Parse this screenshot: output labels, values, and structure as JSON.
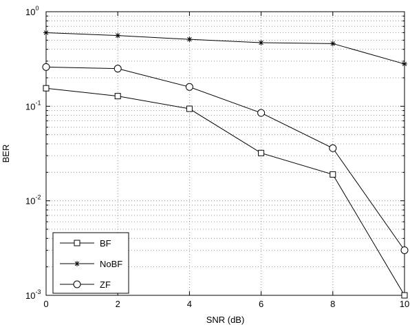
{
  "chart_data": {
    "type": "line",
    "xlabel": "SNR (dB)",
    "ylabel": "BER",
    "xlim": [
      0,
      10
    ],
    "ylim": [
      0.001,
      1
    ],
    "yscale": "log",
    "grid": true,
    "legend_position": "bottom-left",
    "x_ticks": [
      0,
      2,
      4,
      6,
      8,
      10
    ],
    "y_ticks": [
      {
        "value": 0.001,
        "base": "10",
        "exp": "-3"
      },
      {
        "value": 0.01,
        "base": "10",
        "exp": "-2"
      },
      {
        "value": 0.1,
        "base": "10",
        "exp": "-1"
      },
      {
        "value": 1,
        "base": "10",
        "exp": "0"
      }
    ],
    "x": [
      0,
      2,
      4,
      6,
      8,
      10
    ],
    "series": [
      {
        "name": "BF",
        "marker": "square",
        "values": [
          0.155,
          0.128,
          0.094,
          0.032,
          0.019,
          0.001
        ]
      },
      {
        "name": "NoBF",
        "marker": "star",
        "values": [
          0.6,
          0.56,
          0.51,
          0.47,
          0.46,
          0.28
        ]
      },
      {
        "name": "ZF",
        "marker": "circle",
        "values": [
          0.26,
          0.25,
          0.16,
          0.085,
          0.036,
          0.003
        ]
      }
    ],
    "line_color": "#000000",
    "grid_color": "#7f7f7f"
  }
}
